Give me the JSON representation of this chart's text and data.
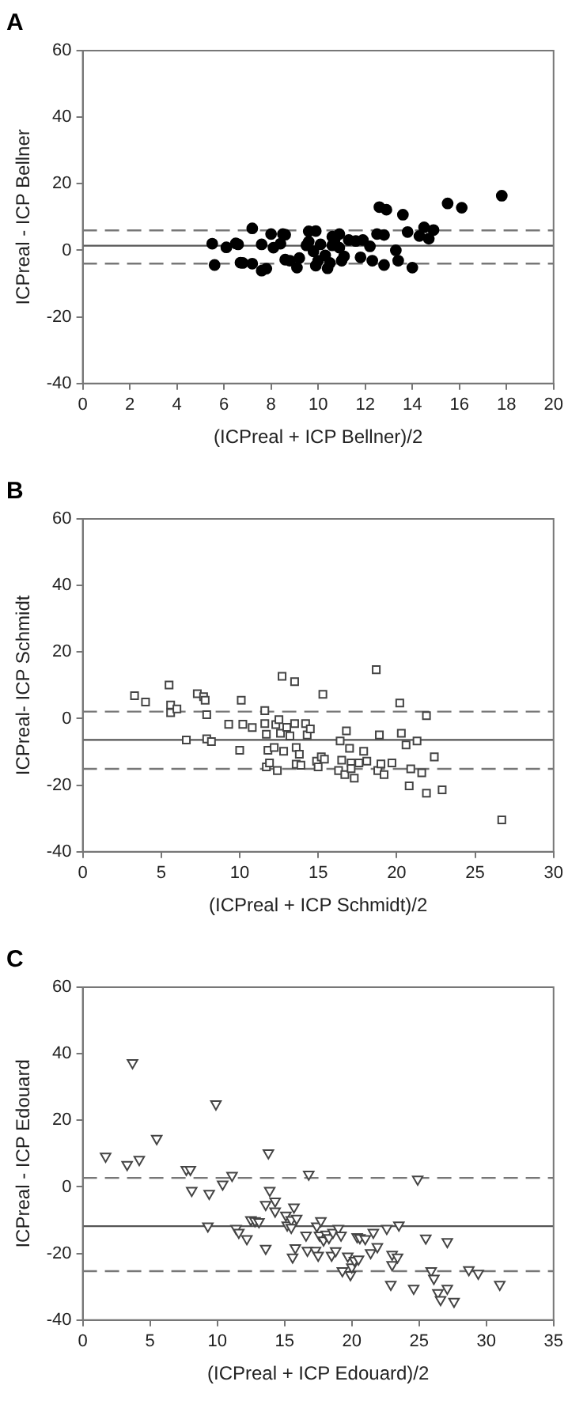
{
  "chart_data": [
    {
      "type": "scatter",
      "title": "A",
      "xlabel": "(ICPreal + ICP Bellner)/2",
      "ylabel": "ICPreal - ICP Bellner",
      "xlim": [
        0,
        20
      ],
      "xticks": [
        0,
        2,
        4,
        6,
        8,
        10,
        12,
        14,
        16,
        18,
        20
      ],
      "ylim": [
        -40,
        60
      ],
      "yticks": [
        -40,
        -20,
        0,
        20,
        40,
        60
      ],
      "grid": false,
      "legend": false,
      "marker": "circle",
      "series": [
        {
          "color": "#000000",
          "x": [
            5.5,
            5.6,
            6.1,
            6.5,
            6.6,
            6.7,
            6.8,
            7.2,
            7.2,
            7.6,
            7.6,
            7.8,
            8.0,
            8.1,
            8.4,
            8.5,
            8.6,
            8.6,
            8.8,
            9.1,
            9.2,
            9.5,
            9.6,
            9.6,
            9.9,
            9.8,
            9.9,
            10.0,
            10.1,
            10.3,
            10.4,
            10.5,
            10.6,
            10.6,
            10.7,
            10.9,
            10.9,
            11.0,
            11.1,
            11.3,
            11.6,
            11.8,
            11.9,
            12.2,
            12.3,
            12.5,
            12.6,
            12.8,
            12.8,
            12.9,
            13.3,
            13.4,
            13.6,
            13.8,
            14.0,
            14.3,
            14.5,
            14.7,
            14.9,
            15.5,
            16.1,
            17.8
          ],
          "values": [
            2.0,
            -4.4,
            0.9,
            2.1,
            1.8,
            -3.7,
            -3.8,
            6.6,
            -4.0,
            1.8,
            -6.1,
            -5.5,
            4.9,
            0.8,
            2.0,
            4.9,
            4.7,
            -2.8,
            -3.1,
            -5.2,
            -2.3,
            1.5,
            2.6,
            5.7,
            5.8,
            -0.3,
            -4.6,
            -3.1,
            1.8,
            -1.5,
            -5.4,
            -3.8,
            4.1,
            1.5,
            3.1,
            0.8,
            4.9,
            -3.1,
            -1.8,
            3.1,
            2.8,
            -2.1,
            3.1,
            1.2,
            -3.1,
            4.9,
            13.0,
            4.6,
            -4.4,
            12.2,
            0.0,
            -3.1,
            10.7,
            5.5,
            -5.2,
            4.3,
            6.9,
            3.5,
            6.1,
            14.1,
            12.8,
            16.4
          ]
        }
      ],
      "ref_lines": [
        {
          "axis": "y",
          "value": 1.4,
          "color": "#555555",
          "line_style": "solid"
        },
        {
          "axis": "y",
          "value": 6,
          "color": "#777777",
          "line_style": "dashed"
        },
        {
          "axis": "y",
          "value": -4,
          "color": "#777777",
          "line_style": "dashed"
        }
      ]
    },
    {
      "type": "scatter",
      "title": "B",
      "xlabel": "(ICPreal + ICP Schmidt)/2",
      "ylabel": "ICPreal- ICP Schmidt",
      "xlim": [
        0,
        30
      ],
      "xticks": [
        0,
        5,
        10,
        15,
        20,
        25,
        30
      ],
      "ylim": [
        -40,
        60
      ],
      "yticks": [
        -40,
        -20,
        0,
        20,
        40,
        60
      ],
      "grid": false,
      "legend": false,
      "marker": "square",
      "series": [
        {
          "color": "#444444",
          "x": [
            3.3,
            4.0,
            5.5,
            5.6,
            5.6,
            6.0,
            6.6,
            7.3,
            7.7,
            7.8,
            7.9,
            7.9,
            8.2,
            9.3,
            10.0,
            10.1,
            10.2,
            10.8,
            11.6,
            11.6,
            11.7,
            11.8,
            11.7,
            11.9,
            12.2,
            12.3,
            12.4,
            12.5,
            12.6,
            12.7,
            12.8,
            13.0,
            13.2,
            13.5,
            13.5,
            13.6,
            13.6,
            13.8,
            13.9,
            14.2,
            14.3,
            14.5,
            14.9,
            15.0,
            15.2,
            15.3,
            15.4,
            16.3,
            16.4,
            16.5,
            16.7,
            16.8,
            17.0,
            17.1,
            17.1,
            17.3,
            17.6,
            17.9,
            18.1,
            18.7,
            18.8,
            18.9,
            19.0,
            19.2,
            19.7,
            20.2,
            20.3,
            20.6,
            20.8,
            20.9,
            21.3,
            21.6,
            21.9,
            21.9,
            22.4,
            22.9,
            26.7
          ],
          "values": [
            6.9,
            5.0,
            10.1,
            1.8,
            4.1,
            2.9,
            -6.4,
            7.5,
            6.6,
            5.5,
            1.2,
            -6.1,
            -6.9,
            -1.7,
            -9.5,
            5.5,
            -1.7,
            -2.7,
            2.4,
            -1.5,
            -4.7,
            -9.5,
            -14.5,
            -13.3,
            -8.7,
            -1.8,
            -15.6,
            -0.3,
            -4.4,
            12.7,
            -9.8,
            -2.6,
            -5.2,
            11.1,
            -1.5,
            -8.7,
            -13.7,
            -10.7,
            -14.0,
            -1.5,
            -4.9,
            -3.1,
            -12.8,
            -14.5,
            -11.5,
            7.3,
            -12.2,
            -15.6,
            -6.7,
            -12.5,
            -16.8,
            -3.7,
            -8.9,
            -13.3,
            -15.0,
            -17.9,
            -13.3,
            -9.8,
            -12.8,
            14.7,
            -15.6,
            -4.9,
            -13.6,
            -16.8,
            -13.3,
            4.7,
            -4.4,
            -7.9,
            -20.2,
            -15.1,
            -6.7,
            -16.3,
            0.9,
            -22.4,
            -11.5,
            -21.4,
            -30.4
          ]
        }
      ],
      "ref_lines": [
        {
          "axis": "y",
          "value": -6.4,
          "color": "#555555",
          "line_style": "solid"
        },
        {
          "axis": "y",
          "value": 2.1,
          "color": "#777777",
          "line_style": "dashed"
        },
        {
          "axis": "y",
          "value": -15.1,
          "color": "#777777",
          "line_style": "dashed"
        }
      ]
    },
    {
      "type": "scatter",
      "title": "C",
      "xlabel": "(ICPreal + ICP Edouard)/2",
      "ylabel": "ICPreal - ICP Edouard",
      "xlim": [
        0,
        35
      ],
      "xticks": [
        0,
        5,
        10,
        15,
        20,
        25,
        30,
        35
      ],
      "ylim": [
        -40,
        60
      ],
      "yticks": [
        -40,
        -20,
        0,
        20,
        40,
        60
      ],
      "grid": false,
      "legend": false,
      "marker": "triangle",
      "series": [
        {
          "color": "#444444",
          "x": [
            1.7,
            3.3,
            3.7,
            4.2,
            5.5,
            7.7,
            8.0,
            8.1,
            9.4,
            9.3,
            9.9,
            10.4,
            11.1,
            11.4,
            11.6,
            12.2,
            12.5,
            12.8,
            13.1,
            13.6,
            13.6,
            13.8,
            13.9,
            14.3,
            14.3,
            15.1,
            15.2,
            15.5,
            15.5,
            15.6,
            15.7,
            15.8,
            15.9,
            16.6,
            16.7,
            16.8,
            17.3,
            17.4,
            17.5,
            17.6,
            17.7,
            17.9,
            18.1,
            18.3,
            18.5,
            18.6,
            18.8,
            19.0,
            19.2,
            19.3,
            19.7,
            19.9,
            20.0,
            20.2,
            20.4,
            20.5,
            20.6,
            21.0,
            21.4,
            21.6,
            21.9,
            22.6,
            22.9,
            23.0,
            23.0,
            23.4,
            23.5,
            24.6,
            24.9,
            25.5,
            25.9,
            26.1,
            26.4,
            26.6,
            27.1,
            27.1,
            27.6,
            28.7,
            29.4,
            31.0
          ],
          "values": [
            9.2,
            6.7,
            37.3,
            8.2,
            14.5,
            5.2,
            5.2,
            -1.1,
            -2.0,
            -11.8,
            24.9,
            0.8,
            3.4,
            -12.5,
            -13.7,
            -15.6,
            -9.9,
            -10.2,
            -10.5,
            -5.3,
            -18.5,
            10.2,
            -1.1,
            -4.3,
            -7.3,
            -8.5,
            -11.5,
            -9.9,
            -12.2,
            -21.1,
            -6.1,
            -18.3,
            -9.5,
            -14.5,
            -19.1,
            3.8,
            -19.1,
            -11.8,
            -20.6,
            -14.5,
            -10.2,
            -16.0,
            -14.2,
            -15.3,
            -20.6,
            -13.7,
            -19.2,
            -12.5,
            -14.5,
            -25.2,
            -20.8,
            -26.4,
            -24.1,
            -22.1,
            -15.0,
            -21.7,
            -15.3,
            -15.6,
            -19.8,
            -13.7,
            -18.0,
            -12.5,
            -29.3,
            -23.4,
            -20.3,
            -21.1,
            -11.5,
            -30.5,
            2.3,
            -15.4,
            -25.2,
            -27.5,
            -31.8,
            -33.9,
            -16.5,
            -30.5,
            -34.4,
            -24.9,
            -26.0,
            -29.3
          ]
        }
      ],
      "ref_lines": [
        {
          "axis": "y",
          "value": -11.8,
          "color": "#555555",
          "line_style": "solid"
        },
        {
          "axis": "y",
          "value": 2.7,
          "color": "#777777",
          "line_style": "dashed"
        },
        {
          "axis": "y",
          "value": -25.3,
          "color": "#777777",
          "line_style": "dashed"
        }
      ]
    }
  ]
}
